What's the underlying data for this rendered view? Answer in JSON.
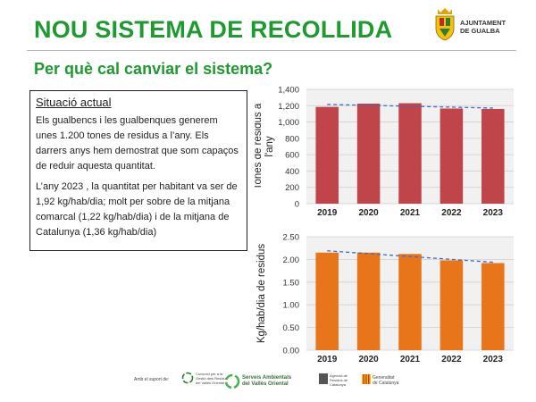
{
  "header": {
    "title": "NOU SISTEMA DE RECOLLIDA",
    "logo_line1": "AJUNTAMENT",
    "logo_line2": "DE GUALBA"
  },
  "subtitle": "Per què cal canviar el sistema?",
  "situacio": {
    "heading": "Situació actual",
    "paragraph1": "Els gualbencs i les gualbenques generem unes 1.200 tones de residus a l’any. Els darrers anys hem demostrat que som capaços de reduir aquesta quantitat.",
    "paragraph2": "L’any 2023 , la quantitat per habitant va ser de 1,92 kg/hab/dia; molt per sobre de la mitjana comarcal (1,22 kg/hab/dia) i de la mitjana de Catalunya (1,36 kg/hab/dia)"
  },
  "chart_data": [
    {
      "type": "bar",
      "categories": [
        "2019",
        "2020",
        "2021",
        "2022",
        "2023"
      ],
      "values": [
        1185,
        1225,
        1230,
        1165,
        1160
      ],
      "ylabel": "Tones de residus a l'any",
      "ylim": [
        0,
        1400
      ],
      "yticks": [
        "0",
        "200",
        "400",
        "600",
        "800",
        "1,000",
        "1,200",
        "1,400"
      ],
      "bar_color": "#c0454a",
      "trendline": true,
      "grid": true
    },
    {
      "type": "bar",
      "categories": [
        "2019",
        "2020",
        "2021",
        "2022",
        "2023"
      ],
      "values": [
        2.15,
        2.15,
        2.12,
        1.98,
        1.92
      ],
      "ylabel": "Kg/hab/dia de residus",
      "ylim": [
        0,
        2.5
      ],
      "yticks": [
        "0.00",
        "0.50",
        "1.00",
        "1.50",
        "2.00",
        "2.50"
      ],
      "bar_color": "#e8751a",
      "trendline": true,
      "grid": true
    }
  ],
  "footer": {
    "support_label": "Amb el suport de:",
    "consorci": "Consorci per a la Gestió dels Residus del Vallès Oriental",
    "serveis_line1": "Serveis Ambientals",
    "serveis_line2": "del Vallès Oriental",
    "agencia": "Agència de Residus de Catalunya",
    "generalitat_line1": "Generalitat",
    "generalitat_line2": "de Catalunya"
  }
}
